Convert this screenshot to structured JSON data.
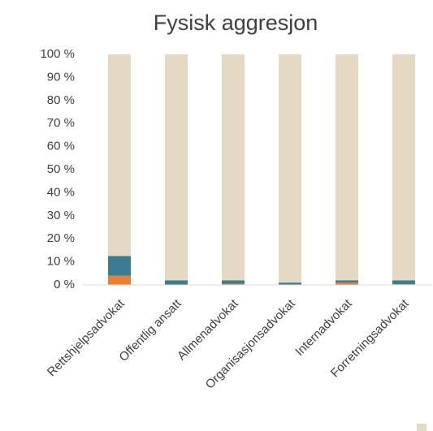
{
  "chart_data": {
    "type": "stacked-bar",
    "title": "Fysisk aggresjon",
    "categories": [
      "Rettshjelpsadvokat",
      "Offentlig ansatt",
      "Allmenadvokat",
      "Organisasjonsadvokat",
      "Internadvokat",
      "Forretningsadvokat"
    ],
    "series": [
      {
        "color": "#ed7d31",
        "values": [
          4,
          0,
          0.5,
          0,
          1,
          0.3
        ]
      },
      {
        "color": "#3a7d93",
        "values": [
          8.5,
          2,
          1.5,
          1,
          1,
          1.7
        ]
      },
      {
        "color": "#e6d9c3",
        "values": [
          87.5,
          98,
          98,
          99,
          98,
          98
        ]
      }
    ],
    "ylim": [
      0,
      100
    ],
    "yticks": [
      {
        "value": 0,
        "label": "0 %"
      },
      {
        "value": 10,
        "label": "10 %"
      },
      {
        "value": 20,
        "label": "20 %"
      },
      {
        "value": 30,
        "label": "30 %"
      },
      {
        "value": 40,
        "label": "40 %"
      },
      {
        "value": 50,
        "label": "50 %"
      },
      {
        "value": 60,
        "label": "60 %"
      },
      {
        "value": 70,
        "label": "70 %"
      },
      {
        "value": 80,
        "label": "80 %"
      },
      {
        "value": 90,
        "label": "90 %"
      },
      {
        "value": 100,
        "label": "100 %"
      }
    ]
  }
}
